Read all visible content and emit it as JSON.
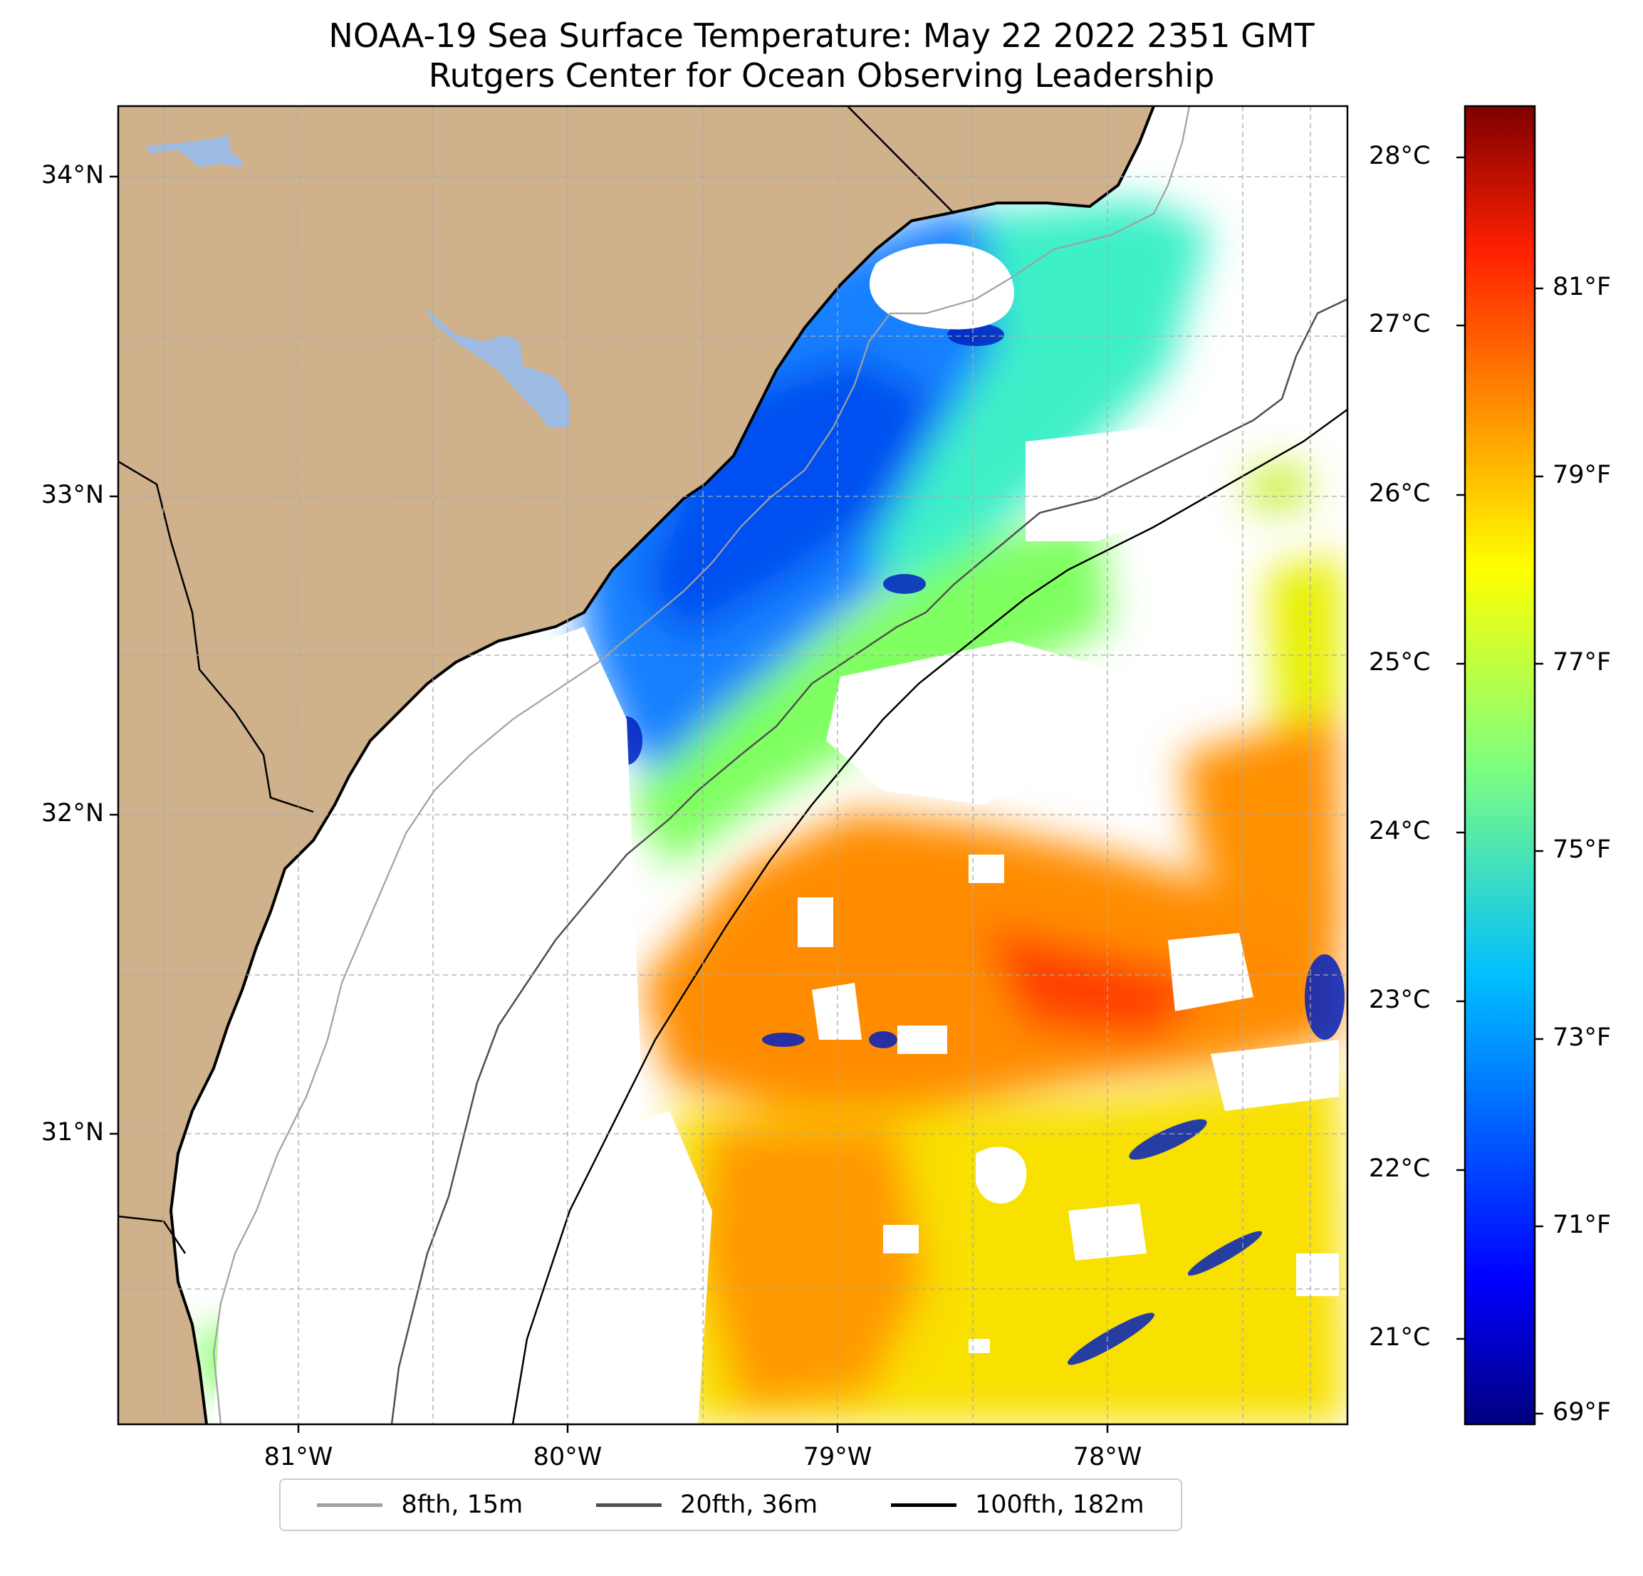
{
  "title": {
    "line1": "NOAA-19 Sea Surface Temperature: May 22 2022 2351 GMT",
    "line2": "Rutgers Center for Ocean Observing Leadership"
  },
  "map": {
    "lon_range": [
      -81.67,
      -77.15
    ],
    "lat_range": [
      30.07,
      34.2
    ],
    "land_color": "#cfb28c",
    "lake_color": "#9dbbe3",
    "gridlines": "dashed gray"
  },
  "axes": {
    "lon_ticks": [
      {
        "value": -81,
        "label": "81°W"
      },
      {
        "value": -80,
        "label": "80°W"
      },
      {
        "value": -79,
        "label": "79°W"
      },
      {
        "value": -78,
        "label": "78°W"
      }
    ],
    "lat_ticks": [
      {
        "value": 34,
        "label": "34°N"
      },
      {
        "value": 33,
        "label": "33°N"
      },
      {
        "value": 32,
        "label": "32°N"
      },
      {
        "value": 31,
        "label": "31°N"
      }
    ]
  },
  "colorbar": {
    "colormap": "jet",
    "celsius_range": [
      20.5,
      28.3
    ],
    "celsius_ticks": [
      {
        "value": 21,
        "label": "21°C"
      },
      {
        "value": 22,
        "label": "22°C"
      },
      {
        "value": 23,
        "label": "23°C"
      },
      {
        "value": 24,
        "label": "24°C"
      },
      {
        "value": 25,
        "label": "25°C"
      },
      {
        "value": 26,
        "label": "26°C"
      },
      {
        "value": 27,
        "label": "27°C"
      },
      {
        "value": 28,
        "label": "28°C"
      }
    ],
    "fahrenheit_ticks": [
      {
        "value": 69,
        "label": "69°F"
      },
      {
        "value": 71,
        "label": "71°F"
      },
      {
        "value": 73,
        "label": "73°F"
      },
      {
        "value": 75,
        "label": "75°F"
      },
      {
        "value": 77,
        "label": "77°F"
      },
      {
        "value": 79,
        "label": "79°F"
      },
      {
        "value": 81,
        "label": "81°F"
      }
    ]
  },
  "legend": {
    "items": [
      {
        "label": "8fth, 15m",
        "color": "#a0a0a0"
      },
      {
        "label": "20fth, 36m",
        "color": "#505050"
      },
      {
        "label": "100fth, 182m",
        "color": "#000000"
      }
    ]
  }
}
